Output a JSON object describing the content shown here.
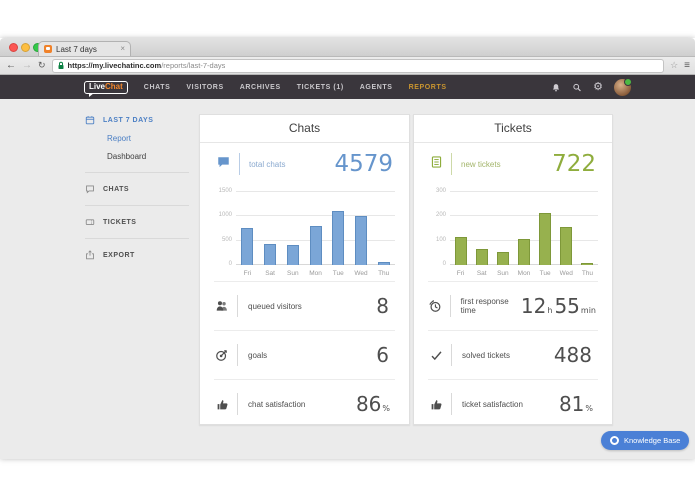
{
  "browser": {
    "tab_title": "Last 7 days",
    "close_glyph": "×",
    "back_glyph": "←",
    "forward_glyph": "→",
    "reload_glyph": "↻",
    "star_glyph": "☆",
    "menu_glyph": "≡",
    "url": {
      "base": "https://my.livechatinc.com",
      "path": "/reports/last-7-days"
    }
  },
  "navbar": {
    "logo": {
      "live": "Live",
      "chat": "Chat"
    },
    "gear_glyph": "⚙",
    "items": [
      {
        "label": "CHATS"
      },
      {
        "label": "VISITORS"
      },
      {
        "label": "ARCHIVES"
      },
      {
        "label": "TICKETS (1)"
      },
      {
        "label": "AGENTS"
      },
      {
        "label": "REPORTS"
      }
    ],
    "active_item": "REPORTS"
  },
  "sidebar": {
    "section_label": "LAST 7 DAYS",
    "links": [
      {
        "label": "Report"
      },
      {
        "label": "Dashboard"
      }
    ],
    "items": [
      {
        "label": "CHATS"
      },
      {
        "label": "TICKETS"
      },
      {
        "label": "EXPORT"
      }
    ]
  },
  "cards": {
    "chats": {
      "title": "Chats",
      "stat_label": "total chats",
      "stat_value": "4579",
      "accent": "#6695cc",
      "metrics": [
        {
          "label": "queued visitors",
          "value": "8"
        },
        {
          "label": "goals",
          "value": "6"
        },
        {
          "label": "chat satisfaction",
          "value": "86",
          "unit": "%"
        }
      ]
    },
    "tickets": {
      "title": "Tickets",
      "stat_label": "new tickets",
      "stat_value": "722",
      "accent": "#8fad3d",
      "metrics": [
        {
          "label": "first response time",
          "value": "12",
          "unit": "h",
          "value2": "55",
          "unit2": "min"
        },
        {
          "label": "solved tickets",
          "value": "488"
        },
        {
          "label": "ticket satisfaction",
          "value": "81",
          "unit": "%"
        }
      ]
    }
  },
  "chart_data": [
    {
      "type": "bar",
      "title": "total chats",
      "categories": [
        "Fri",
        "Sat",
        "Sun",
        "Mon",
        "Tue",
        "Wed",
        "Thu"
      ],
      "values": [
        770,
        430,
        414,
        800,
        1105,
        1000,
        60
      ],
      "ylim": [
        0,
        1500
      ],
      "yticks": [
        0,
        500,
        1000,
        1500
      ],
      "xlabel": "",
      "ylabel": "",
      "grid": true,
      "legend": false,
      "color": "#7ba6d7",
      "border": "#5e8dc1"
    },
    {
      "type": "bar",
      "title": "new tickets",
      "categories": [
        "Fri",
        "Sat",
        "Sun",
        "Mon",
        "Tue",
        "Wed",
        "Thu"
      ],
      "values": [
        115,
        65,
        55,
        108,
        213,
        156,
        10
      ],
      "ylim": [
        0,
        300
      ],
      "yticks": [
        0,
        100,
        200,
        300
      ],
      "xlabel": "",
      "ylabel": "",
      "grid": true,
      "legend": false,
      "color": "#97b14e",
      "border": "#7e9839"
    }
  ],
  "kb_button": {
    "label": "Knowledge Base"
  }
}
